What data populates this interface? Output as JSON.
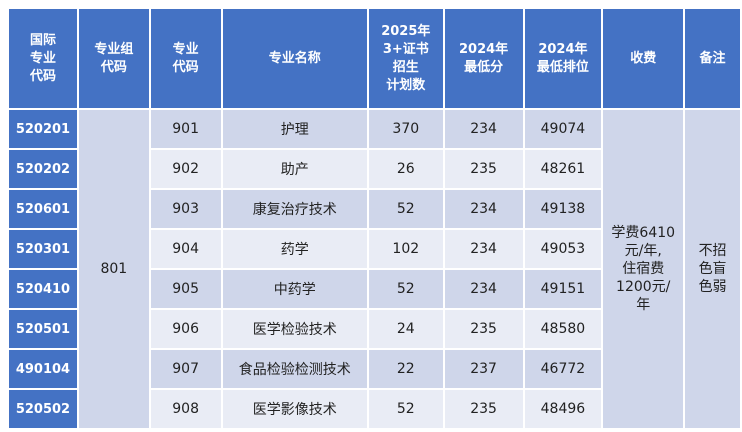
{
  "header": {
    "intl_code": [
      "国际",
      "专业",
      "代码"
    ],
    "group_code": [
      "专业组",
      "代码"
    ],
    "major_code": [
      "专业",
      "代码"
    ],
    "major_name": "专业名称",
    "plan": [
      "2025年",
      "3+证书",
      "招生",
      "计划数"
    ],
    "min_score": [
      "2024年",
      "最低分"
    ],
    "min_rank": [
      "2024年",
      "最低排位"
    ],
    "fee": "收费",
    "remark": "备注"
  },
  "group_code_value": "801",
  "fee_text": [
    "学费6410",
    "元/年,",
    "住宿费",
    "1200元/",
    "年"
  ],
  "remark_text": [
    "不招",
    "色盲",
    "色弱"
  ],
  "rows": [
    {
      "intl_code": "520201",
      "major_code": "901",
      "name": "护理",
      "plan": "370",
      "score": "234",
      "rank": "49074"
    },
    {
      "intl_code": "520202",
      "major_code": "902",
      "name": "助产",
      "plan": "26",
      "score": "235",
      "rank": "48261"
    },
    {
      "intl_code": "520601",
      "major_code": "903",
      "name": "康复治疗技术",
      "plan": "52",
      "score": "234",
      "rank": "49138"
    },
    {
      "intl_code": "520301",
      "major_code": "904",
      "name": "药学",
      "plan": "102",
      "score": "234",
      "rank": "49053"
    },
    {
      "intl_code": "520410",
      "major_code": "905",
      "name": "中药学",
      "plan": "52",
      "score": "234",
      "rank": "49151"
    },
    {
      "intl_code": "520501",
      "major_code": "906",
      "name": "医学检验技术",
      "plan": "24",
      "score": "235",
      "rank": "48580"
    },
    {
      "intl_code": "490104",
      "major_code": "907",
      "name": "食品检验检测技术",
      "plan": "22",
      "score": "237",
      "rank": "46772"
    },
    {
      "intl_code": "520502",
      "major_code": "908",
      "name": "医学影像技术",
      "plan": "52",
      "score": "235",
      "rank": "48496"
    }
  ]
}
